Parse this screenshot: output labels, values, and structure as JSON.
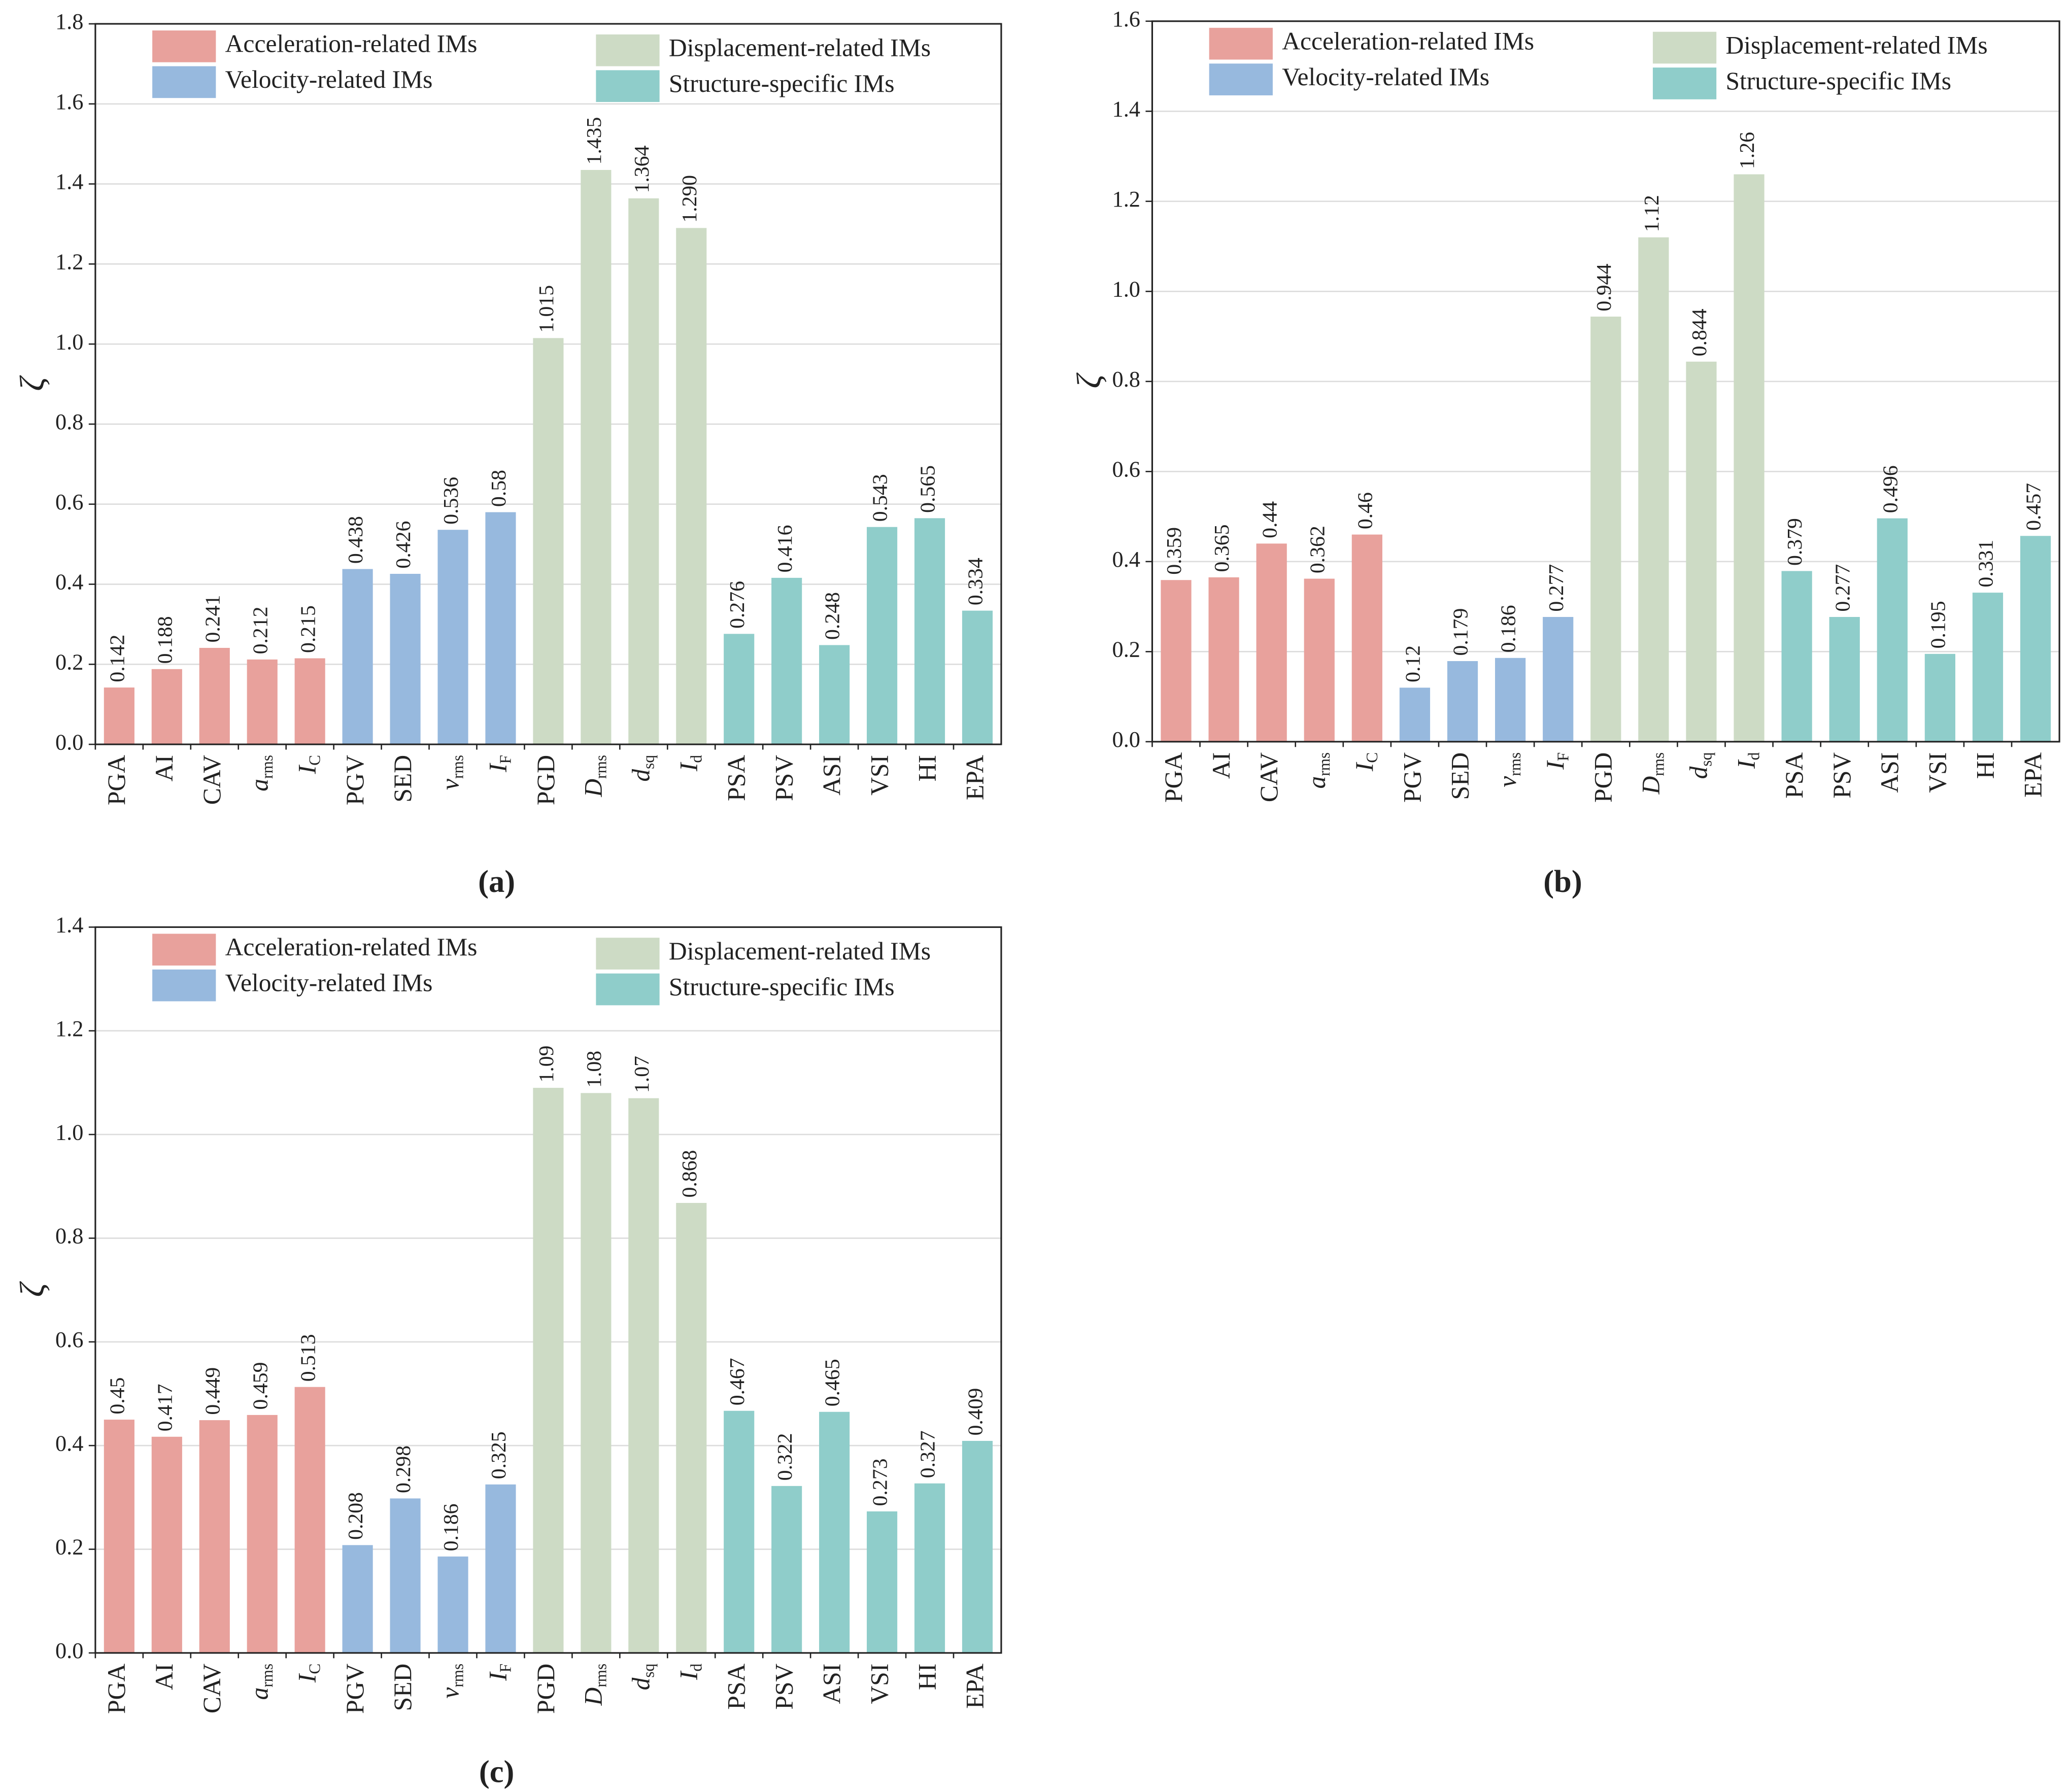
{
  "chart_data": [
    {
      "type": "bar",
      "label": "(a)",
      "ylabel": "ζ",
      "categories": [
        "PGA",
        "AI",
        "CAV",
        {
          "text": "a",
          "sub": "rms"
        },
        {
          "text": "I",
          "sub": "C"
        },
        "PGV",
        "SED",
        {
          "text": "v",
          "sub": "rms"
        },
        {
          "text": "I",
          "sub": "F"
        },
        "PGD",
        {
          "text": "D",
          "sub": "rms"
        },
        {
          "text": "d",
          "sub": "sq"
        },
        {
          "text": "I",
          "sub": "d"
        },
        "PSA",
        "PSV",
        "ASI",
        "VSI",
        "HI",
        "EPA"
      ],
      "series": [
        {
          "name": "Acceleration-related IMs",
          "color": "#e8a19c",
          "values": [
            0.142,
            0.188,
            0.241,
            0.212,
            0.215,
            null,
            null,
            null,
            null,
            null,
            null,
            null,
            null,
            null,
            null,
            null,
            null,
            null,
            null
          ]
        },
        {
          "name": "Velocity-related IMs",
          "color": "#97b9de",
          "values": [
            null,
            null,
            null,
            null,
            null,
            0.438,
            0.426,
            0.536,
            0.58,
            null,
            null,
            null,
            null,
            null,
            null,
            null,
            null,
            null,
            null
          ]
        },
        {
          "name": "Displacement-related IMs",
          "color": "#cddbc5",
          "values": [
            null,
            null,
            null,
            null,
            null,
            null,
            null,
            null,
            null,
            1.015,
            1.435,
            1.364,
            1.29,
            null,
            null,
            null,
            null,
            null,
            null
          ],
          "value_labels": [
            null,
            null,
            null,
            null,
            null,
            null,
            null,
            null,
            null,
            "1.015",
            "1.435",
            "1.364",
            "1.290",
            null,
            null,
            null,
            null,
            null,
            null
          ]
        },
        {
          "name": "Structure-specific IMs",
          "color": "#8fcdca",
          "values": [
            null,
            null,
            null,
            null,
            null,
            null,
            null,
            null,
            null,
            null,
            null,
            null,
            null,
            0.276,
            0.416,
            0.248,
            0.543,
            0.565,
            0.334
          ]
        }
      ],
      "ylim": [
        0,
        1.8
      ],
      "yticks": [
        {
          "value": 0,
          "label": "0.0"
        },
        0.2,
        0.4,
        0.6,
        0.8,
        {
          "value": 1,
          "label": "1.0"
        },
        1.2,
        1.4,
        1.6,
        1.8
      ],
      "grid": true
    },
    {
      "type": "bar",
      "label": "(b)",
      "ylabel": "ζ",
      "categories": [
        "PGA",
        "AI",
        "CAV",
        {
          "text": "a",
          "sub": "rms"
        },
        {
          "text": "I",
          "sub": "C"
        },
        "PGV",
        "SED",
        {
          "text": "v",
          "sub": "rms"
        },
        {
          "text": "I",
          "sub": "F"
        },
        "PGD",
        {
          "text": "D",
          "sub": "rms"
        },
        {
          "text": "d",
          "sub": "sq"
        },
        {
          "text": "I",
          "sub": "d"
        },
        "PSA",
        "PSV",
        "ASI",
        "VSI",
        "HI",
        "EPA"
      ],
      "series": [
        {
          "name": "Acceleration-related IMs",
          "color": "#e8a19c",
          "values": [
            0.359,
            0.365,
            0.44,
            0.362,
            0.46,
            null,
            null,
            null,
            null,
            null,
            null,
            null,
            null,
            null,
            null,
            null,
            null,
            null,
            null
          ]
        },
        {
          "name": "Velocity-related IMs",
          "color": "#97b9de",
          "values": [
            null,
            null,
            null,
            null,
            null,
            0.12,
            0.179,
            0.186,
            0.277,
            null,
            null,
            null,
            null,
            null,
            null,
            null,
            null,
            null,
            null
          ]
        },
        {
          "name": "Displacement-related IMs",
          "color": "#cddbc5",
          "values": [
            null,
            null,
            null,
            null,
            null,
            null,
            null,
            null,
            null,
            0.944,
            1.12,
            0.844,
            1.26,
            null,
            null,
            null,
            null,
            null,
            null
          ]
        },
        {
          "name": "Structure-specific IMs",
          "color": "#8fcdca",
          "values": [
            null,
            null,
            null,
            null,
            null,
            null,
            null,
            null,
            null,
            null,
            null,
            null,
            null,
            0.379,
            0.277,
            0.496,
            0.195,
            0.331,
            0.457
          ]
        }
      ],
      "ylim": [
        0,
        1.6
      ],
      "yticks": [
        {
          "value": 0,
          "label": "0.0"
        },
        0.2,
        0.4,
        0.6,
        0.8,
        {
          "value": 1,
          "label": "1.0"
        },
        1.2,
        1.4,
        1.6
      ],
      "grid": true
    },
    {
      "type": "bar",
      "label": "(c)",
      "ylabel": "ζ",
      "categories": [
        "PGA",
        "AI",
        "CAV",
        {
          "text": "a",
          "sub": "rms"
        },
        {
          "text": "I",
          "sub": "C"
        },
        "PGV",
        "SED",
        {
          "text": "v",
          "sub": "rms"
        },
        {
          "text": "I",
          "sub": "F"
        },
        "PGD",
        {
          "text": "D",
          "sub": "rms"
        },
        {
          "text": "d",
          "sub": "sq"
        },
        {
          "text": "I",
          "sub": "d"
        },
        "PSA",
        "PSV",
        "ASI",
        "VSI",
        "HI",
        "EPA"
      ],
      "series": [
        {
          "name": "Acceleration-related IMs",
          "color": "#e8a19c",
          "values": [
            0.45,
            0.417,
            0.449,
            0.459,
            0.513,
            null,
            null,
            null,
            null,
            null,
            null,
            null,
            null,
            null,
            null,
            null,
            null,
            null,
            null
          ]
        },
        {
          "name": "Velocity-related IMs",
          "color": "#97b9de",
          "values": [
            null,
            null,
            null,
            null,
            null,
            0.208,
            0.298,
            0.186,
            0.325,
            null,
            null,
            null,
            null,
            null,
            null,
            null,
            null,
            null,
            null
          ]
        },
        {
          "name": "Displacement-related IMs",
          "color": "#cddbc5",
          "values": [
            null,
            null,
            null,
            null,
            null,
            null,
            null,
            null,
            null,
            1.09,
            1.08,
            1.07,
            0.868,
            null,
            null,
            null,
            null,
            null,
            null
          ]
        },
        {
          "name": "Structure-specific IMs",
          "color": "#8fcdca",
          "values": [
            null,
            null,
            null,
            null,
            null,
            null,
            null,
            null,
            null,
            null,
            null,
            null,
            null,
            0.467,
            0.322,
            0.465,
            0.273,
            0.327,
            0.409
          ]
        }
      ],
      "ylim": [
        0,
        1.4
      ],
      "yticks": [
        {
          "value": 0,
          "label": "0.0"
        },
        0.2,
        0.4,
        0.6,
        0.8,
        {
          "value": 1,
          "label": "1.0"
        },
        1.2,
        1.4
      ],
      "grid": true
    }
  ]
}
